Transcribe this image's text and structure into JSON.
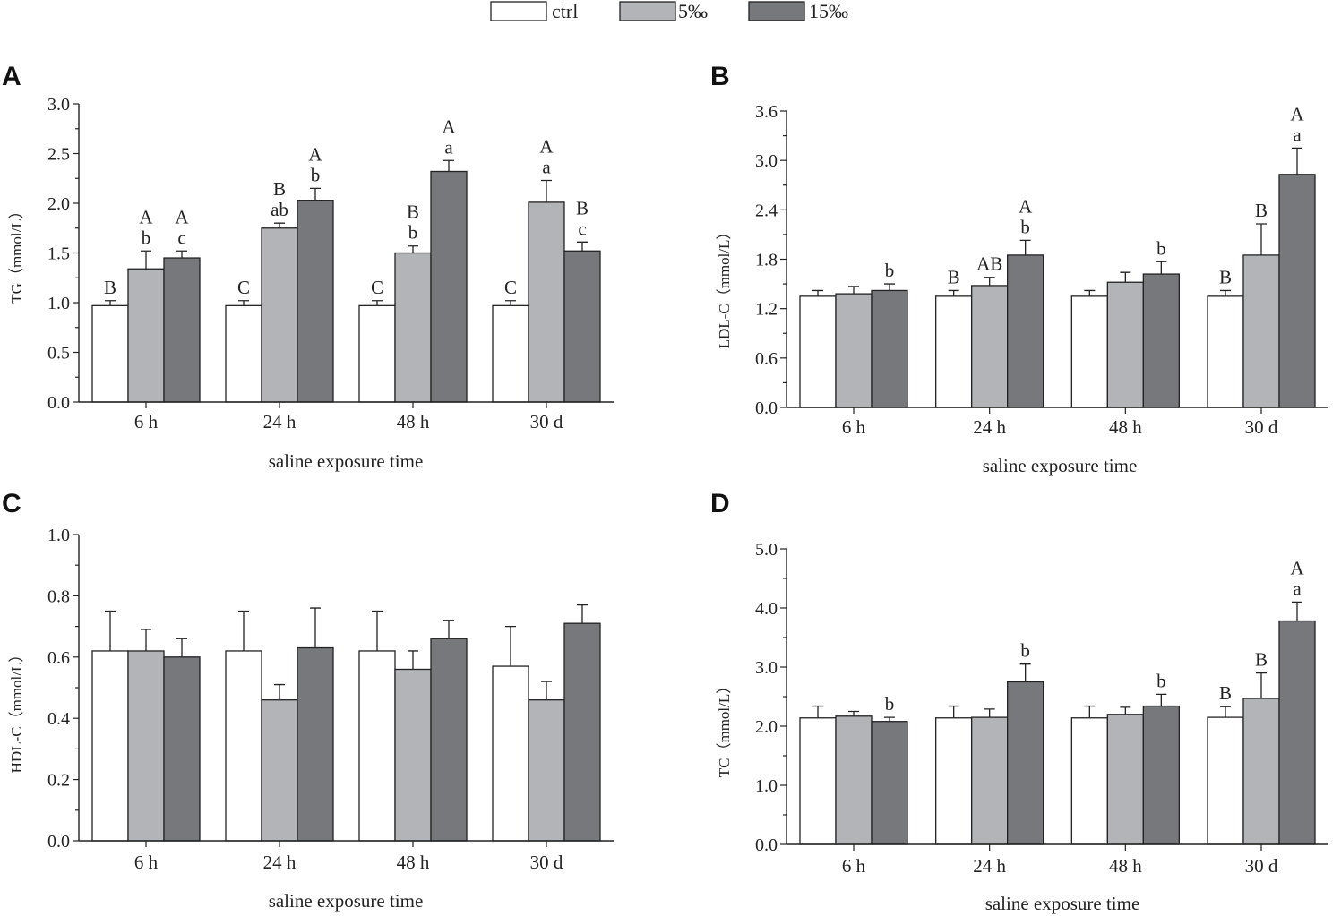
{
  "legend": [
    {
      "label": "ctrl",
      "color": "#ffffff"
    },
    {
      "label": "5‰",
      "color": "#b3b4b8"
    },
    {
      "label": "15‰",
      "color": "#77787c"
    }
  ],
  "chart_data": [
    {
      "panel": "A",
      "type": "bar",
      "title": "",
      "xlabel": "saline exposure time",
      "ylabel": "TG（mmol/L）",
      "ylim": [
        0,
        3.0
      ],
      "yticks": [
        "0.0",
        "0.5",
        "1.0",
        "1.5",
        "2.0",
        "2.5",
        "3.0"
      ],
      "categories": [
        "6 h",
        "24 h",
        "48 h",
        "30 d"
      ],
      "series": [
        {
          "name": "ctrl",
          "color": "#ffffff",
          "values": [
            0.97,
            0.97,
            0.97,
            0.97
          ],
          "errors": [
            0.05,
            0.05,
            0.05,
            0.05
          ],
          "labels": [
            "B",
            "C",
            "C",
            "C"
          ]
        },
        {
          "name": "5‰",
          "color": "#b3b4b8",
          "values": [
            1.34,
            1.75,
            1.5,
            2.01
          ],
          "errors": [
            0.18,
            0.05,
            0.07,
            0.22
          ],
          "labels": [
            "A\nb",
            "B\nab",
            "B\nb",
            "A\na"
          ]
        },
        {
          "name": "15‰",
          "color": "#77787c",
          "values": [
            1.45,
            2.03,
            2.32,
            1.52
          ],
          "errors": [
            0.07,
            0.12,
            0.11,
            0.09
          ],
          "labels": [
            "A\nc",
            "A\nb",
            "A\na",
            "B\nc"
          ]
        }
      ]
    },
    {
      "panel": "B",
      "type": "bar",
      "title": "",
      "xlabel": "saline exposure time",
      "ylabel": "LDL-C（mmol/L）",
      "ylim": [
        0,
        3.6
      ],
      "yticks": [
        "0.0",
        "0.6",
        "1.2",
        "1.8",
        "2.4",
        "3.0",
        "3.6"
      ],
      "categories": [
        "6 h",
        "24 h",
        "48 h",
        "30 d"
      ],
      "series": [
        {
          "name": "ctrl",
          "color": "#ffffff",
          "values": [
            1.35,
            1.35,
            1.35,
            1.35
          ],
          "errors": [
            0.07,
            0.07,
            0.07,
            0.07
          ],
          "labels": [
            "",
            "B",
            "",
            "B"
          ]
        },
        {
          "name": "5‰",
          "color": "#b3b4b8",
          "values": [
            1.38,
            1.48,
            1.52,
            1.85
          ],
          "errors": [
            0.09,
            0.1,
            0.12,
            0.38
          ],
          "labels": [
            "",
            "AB",
            "",
            "B"
          ]
        },
        {
          "name": "15‰",
          "color": "#77787c",
          "values": [
            1.42,
            1.85,
            1.62,
            2.83
          ],
          "errors": [
            0.08,
            0.18,
            0.15,
            0.32
          ],
          "labels": [
            "b",
            "A\nb",
            "b",
            "A\na"
          ]
        }
      ]
    },
    {
      "panel": "C",
      "type": "bar",
      "title": "",
      "xlabel": "saline exposure time",
      "ylabel": "HDL-C（mmol/L）",
      "ylim": [
        0,
        1.0
      ],
      "yticks": [
        "0.0",
        "0.2",
        "0.4",
        "0.6",
        "0.8",
        "1.0"
      ],
      "categories": [
        "6 h",
        "24 h",
        "48 h",
        "30 d"
      ],
      "series": [
        {
          "name": "ctrl",
          "color": "#ffffff",
          "values": [
            0.62,
            0.62,
            0.62,
            0.57
          ],
          "errors": [
            0.13,
            0.13,
            0.13,
            0.13
          ],
          "labels": [
            "",
            "",
            "",
            ""
          ]
        },
        {
          "name": "5‰",
          "color": "#b3b4b8",
          "values": [
            0.62,
            0.46,
            0.56,
            0.46
          ],
          "errors": [
            0.07,
            0.05,
            0.06,
            0.06
          ],
          "labels": [
            "",
            "",
            "",
            ""
          ]
        },
        {
          "name": "15‰",
          "color": "#77787c",
          "values": [
            0.6,
            0.63,
            0.66,
            0.71
          ],
          "errors": [
            0.06,
            0.13,
            0.06,
            0.06
          ],
          "labels": [
            "",
            "",
            "",
            ""
          ]
        }
      ]
    },
    {
      "panel": "D",
      "type": "bar",
      "title": "",
      "xlabel": "saline exposure time",
      "ylabel": "TC（mmol/L）",
      "ylim": [
        0,
        5.0
      ],
      "yticks": [
        "0.0",
        "1.0",
        "2.0",
        "3.0",
        "4.0",
        "5.0"
      ],
      "categories": [
        "6 h",
        "24 h",
        "48 h",
        "30 d"
      ],
      "series": [
        {
          "name": "ctrl",
          "color": "#ffffff",
          "values": [
            2.14,
            2.14,
            2.14,
            2.15
          ],
          "errors": [
            0.2,
            0.2,
            0.2,
            0.18
          ],
          "labels": [
            "",
            "",
            "",
            "B"
          ]
        },
        {
          "name": "5‰",
          "color": "#b3b4b8",
          "values": [
            2.17,
            2.15,
            2.2,
            2.47
          ],
          "errors": [
            0.08,
            0.14,
            0.12,
            0.43
          ],
          "labels": [
            "",
            "",
            "",
            "B"
          ]
        },
        {
          "name": "15‰",
          "color": "#77787c",
          "values": [
            2.08,
            2.75,
            2.34,
            3.78
          ],
          "errors": [
            0.07,
            0.3,
            0.2,
            0.32
          ],
          "labels": [
            "b",
            "b",
            "b",
            "A\na"
          ]
        }
      ]
    }
  ]
}
